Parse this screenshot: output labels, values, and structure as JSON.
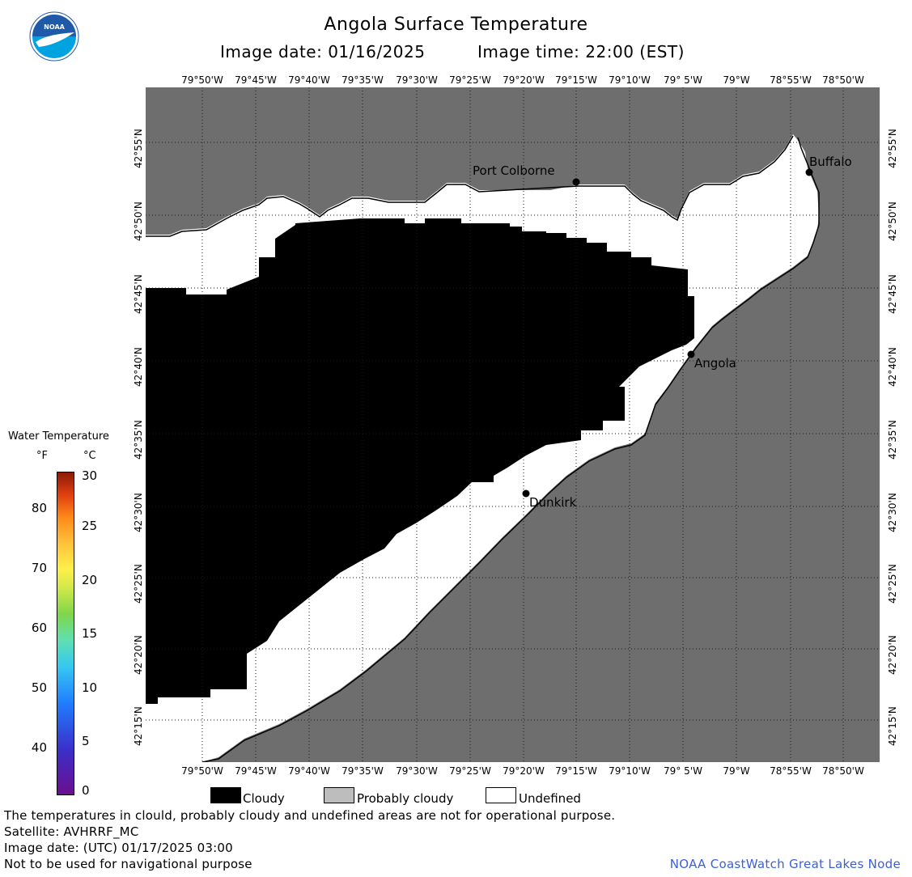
{
  "header": {
    "title": "Angola Surface Temperature",
    "date_label": "Image date: 01/16/2025",
    "time_label": "Image time: 22:00 (EST)"
  },
  "logo": {
    "text": "NOAA",
    "icon": "noaa-logo-icon",
    "colors": {
      "blue_top": "#1e5aa8",
      "blue_bottom": "#00a3e0",
      "bird": "#ffffff"
    }
  },
  "map": {
    "colors": {
      "land": "#6e6e6e",
      "cloudy": "#000000",
      "undefined": "#ffffff",
      "probably_cloudy": "#bdbdbd",
      "grid": "#1a1a1a"
    },
    "lon_labels": [
      "79°50'W",
      "79°45'W",
      "79°40'W",
      "79°35'W",
      "79°30'W",
      "79°25'W",
      "79°20'W",
      "79°15'W",
      "79°10'W",
      "79° 5'W",
      "79°W",
      "78°55'W",
      "78°50'W"
    ],
    "lat_labels": [
      "42°55'N",
      "42°50'N",
      "42°45'N",
      "42°40'N",
      "42°35'N",
      "42°30'N",
      "42°25'N",
      "42°20'N",
      "42°15'N"
    ],
    "cities": [
      {
        "name": "Port Colborne"
      },
      {
        "name": "Buffalo"
      },
      {
        "name": "Angola"
      },
      {
        "name": "Dunkirk"
      }
    ]
  },
  "legend": {
    "title": "Water Temperature",
    "unit_f": "°F",
    "unit_c": "°C",
    "f_ticks": [
      "80",
      "70",
      "60",
      "50",
      "40"
    ],
    "c_ticks": [
      "30",
      "25",
      "20",
      "15",
      "10",
      "5",
      "0"
    ],
    "categories": [
      {
        "label": "Cloudy",
        "color": "#000000"
      },
      {
        "label": "Probably cloudy",
        "color": "#bdbdbd"
      },
      {
        "label": "Undefined",
        "color": "#ffffff"
      }
    ]
  },
  "footer": {
    "disclaimer": "The temperatures in clould, probably cloudy and undefined areas are not for operational purpose.",
    "satellite": "Satellite: AVHRRF_MC",
    "utc_date": "Image date: (UTC) 01/17/2025  03:00",
    "nav_warning": "Not to be used for navigational purpose",
    "credit": "NOAA CoastWatch Great Lakes Node"
  }
}
